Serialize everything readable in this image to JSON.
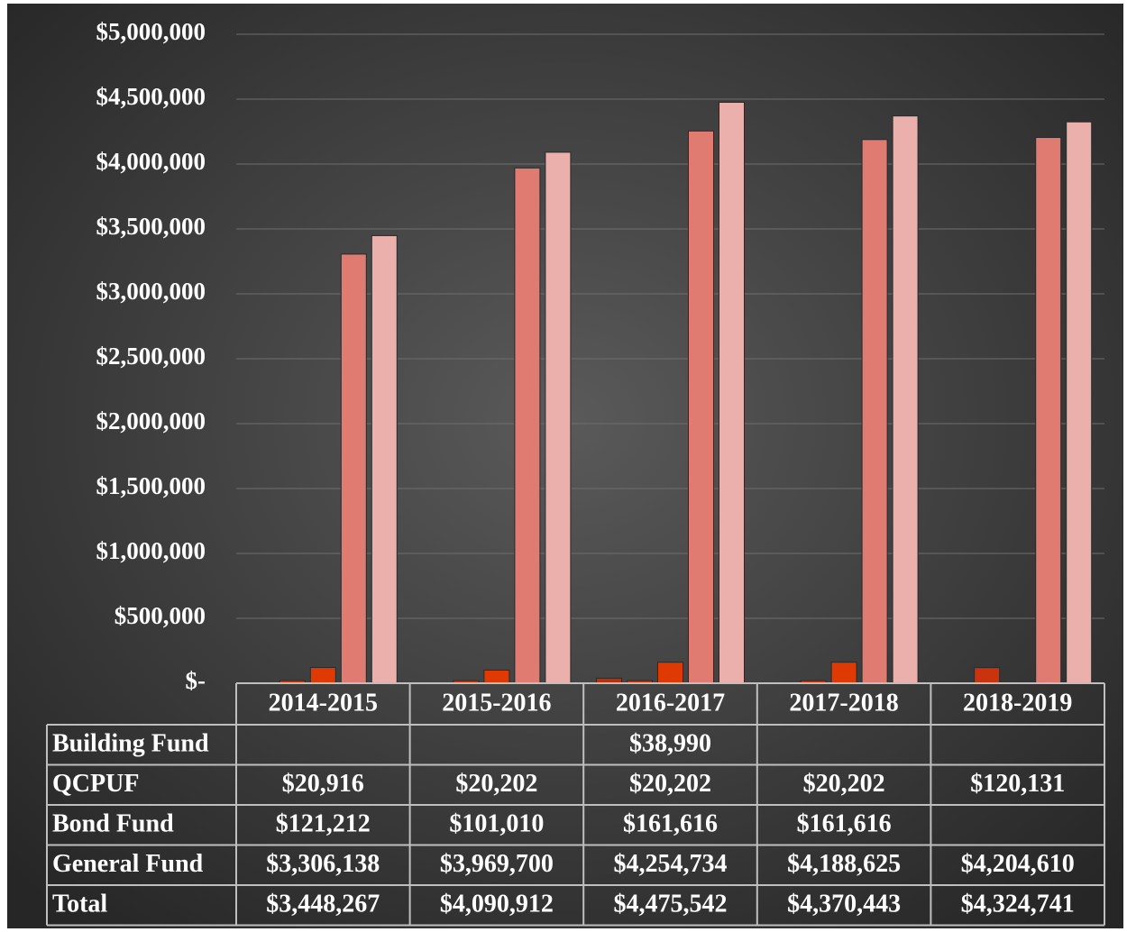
{
  "chart_data": {
    "type": "bar",
    "categories": [
      "2014-2015",
      "2015-2016",
      "2016-2017",
      "2017-2018",
      "2018-2019"
    ],
    "series": [
      {
        "name": "Building Fund",
        "color": "#b8300c",
        "values": [
          null,
          null,
          38990,
          null,
          null
        ],
        "value_labels": [
          null,
          null,
          "$38,990",
          null,
          null
        ]
      },
      {
        "name": "QCPUF",
        "color": "#c9340e",
        "values": [
          20916,
          20202,
          20202,
          20202,
          120131
        ],
        "value_labels": [
          "$20,916",
          "$20,202",
          "$20,202",
          "$20,202",
          "$120,131"
        ]
      },
      {
        "name": "Bond Fund",
        "color": "#e03a04",
        "values": [
          121212,
          101010,
          161616,
          161616,
          null
        ],
        "value_labels": [
          "$121,212",
          "$101,010",
          "$161,616",
          "$161,616",
          null
        ]
      },
      {
        "name": "General Fund",
        "color": "#df7b70",
        "values": [
          3306138,
          3969700,
          4254734,
          4188625,
          4204610
        ],
        "value_labels": [
          "$3,306,138",
          "$3,969,700",
          "$4,254,734",
          "$4,188,625",
          "$4,204,610"
        ]
      },
      {
        "name": "Total",
        "color": "#ebb0ab",
        "values": [
          3448267,
          4090912,
          4475542,
          4370443,
          4324741
        ],
        "value_labels": [
          "$3,448,267",
          "$4,090,912",
          "$4,475,542",
          "$4,370,443",
          "$4,324,741"
        ]
      }
    ],
    "ylim": [
      0,
      5000000
    ],
    "yticks": [
      {
        "value": 0,
        "label": "$-"
      },
      {
        "value": 500000,
        "label": "$500,000"
      },
      {
        "value": 1000000,
        "label": "$1,000,000"
      },
      {
        "value": 1500000,
        "label": "$1,500,000"
      },
      {
        "value": 2000000,
        "label": "$2,000,000"
      },
      {
        "value": 2500000,
        "label": "$2,500,000"
      },
      {
        "value": 3000000,
        "label": "$3,000,000"
      },
      {
        "value": 3500000,
        "label": "$3,500,000"
      },
      {
        "value": 4000000,
        "label": "$4,000,000"
      },
      {
        "value": 4500000,
        "label": "$4,500,000"
      },
      {
        "value": 5000000,
        "label": "$5,000,000"
      }
    ],
    "grid": true
  }
}
